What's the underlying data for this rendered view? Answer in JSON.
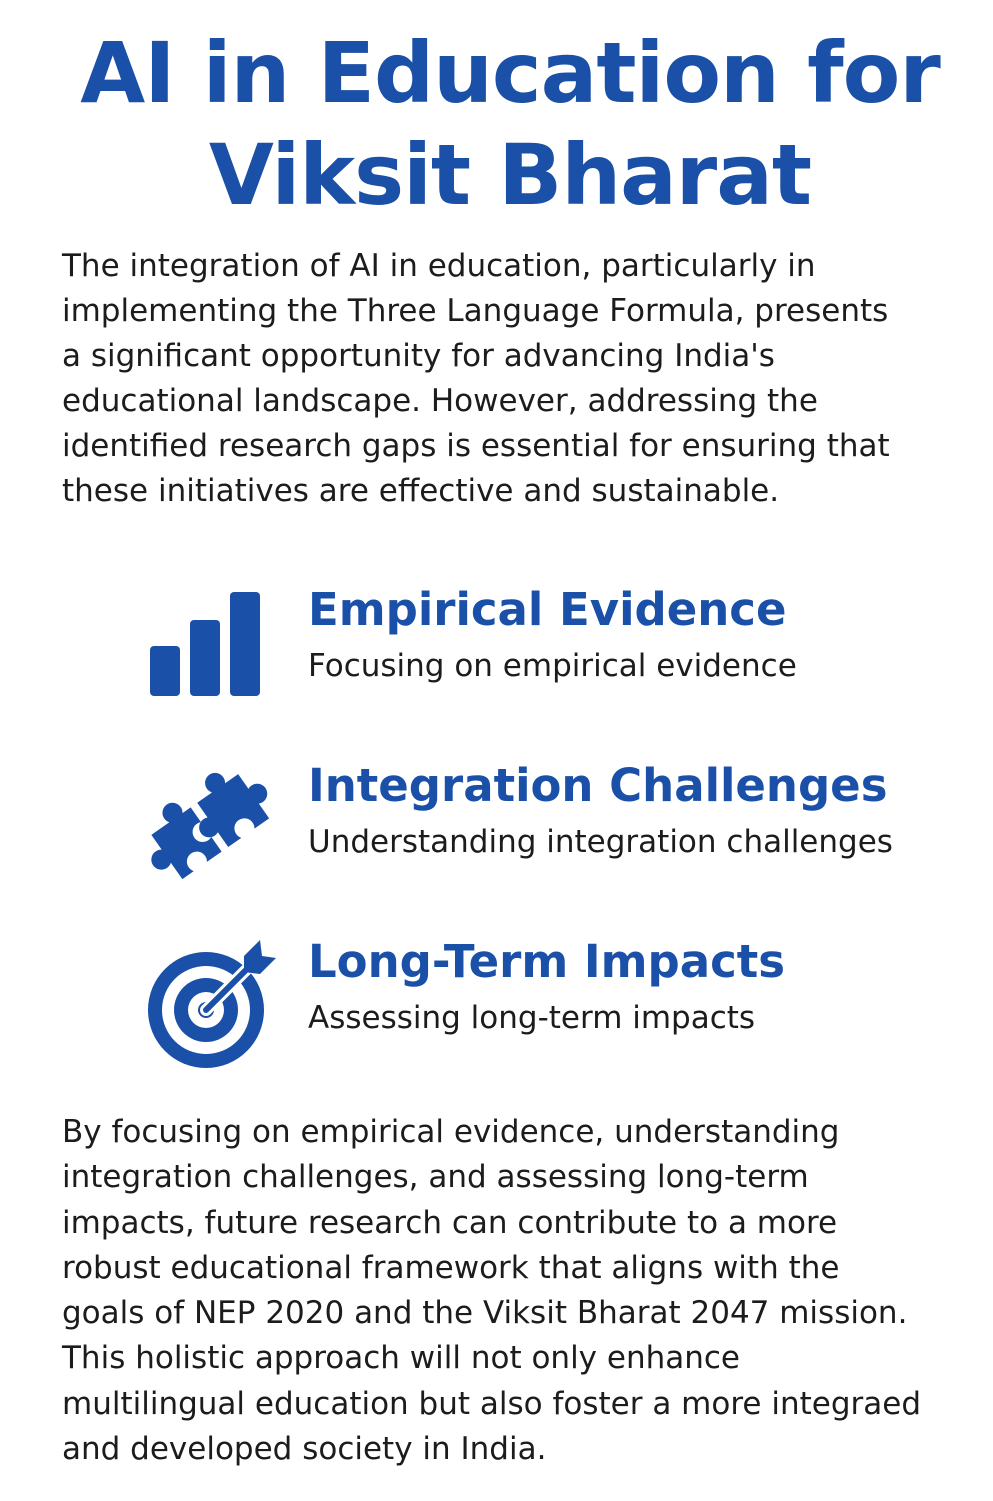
{
  "title": {
    "line1": "AI in Education for",
    "line2": "Viksit Bharat"
  },
  "intro": {
    "lines": [
      "The integration of AI in education, particularly in",
      "implementing the Three Language Formula, presents",
      "a significant opportunity for advancing India's",
      "educational landscape. However, addressing the",
      "identified research gaps is essential for ensuring that",
      "these initiatives are effective and sustainable."
    ]
  },
  "features": [
    {
      "icon": "bar-chart-icon",
      "heading": "Empirical Evidence",
      "description": "Focusing on empirical evidence"
    },
    {
      "icon": "puzzle-piece-icon",
      "heading": "Integration Challenges",
      "description": "Understanding integration challenges"
    },
    {
      "icon": "target-icon",
      "heading": "Long-Term Impacts",
      "description": "Assessing long-term impacts"
    }
  ],
  "outro": {
    "lines": [
      "By focusing on empirical evidence, understanding",
      "integration challenges, and assessing long-term",
      "impacts, future research can contribute to a more",
      "robust educational framework that aligns with the",
      "goals of NEP 2020 and the Viksit Bharat 2047 mission.",
      "This holistic approach will not only enhance",
      "multilingual education but also foster a more integraed",
      "and developed society in India."
    ]
  },
  "colors": {
    "accent": "#1a50a8",
    "text": "#1c1c1c",
    "background": "#ffffff"
  }
}
